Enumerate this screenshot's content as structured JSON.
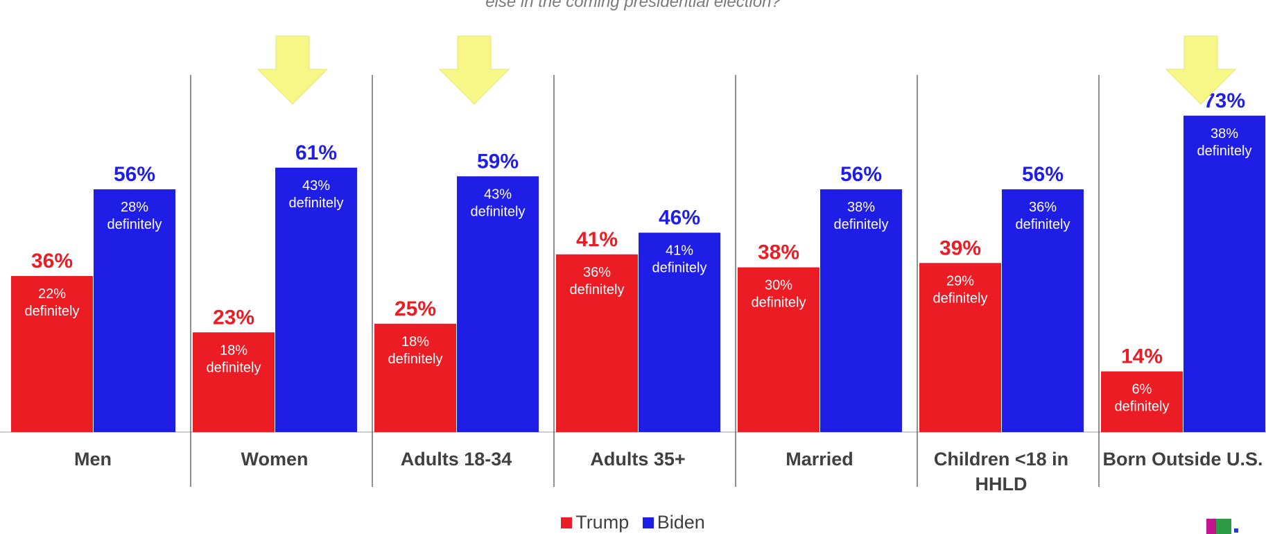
{
  "subtitle": "else in the coming presidential election?",
  "colors": {
    "trump": "#ec1c24",
    "biden": "#1e1ee6",
    "arrow": "#f7f788"
  },
  "chart_data": {
    "type": "bar",
    "categories": [
      "Men",
      "Women",
      "Adults 18-34",
      "Adults 35+",
      "Married",
      "Children <18 in HHLD",
      "Born Outside U.S."
    ],
    "series": [
      {
        "name": "Trump",
        "values": [
          36,
          23,
          25,
          41,
          38,
          39,
          14
        ],
        "value_labels": [
          "36%",
          "23%",
          "25%",
          "41%",
          "38%",
          "39%",
          "14%"
        ],
        "definitely_values": [
          22,
          18,
          18,
          36,
          30,
          29,
          6
        ],
        "definitely_labels": [
          "22%",
          "18%",
          "18%",
          "36%",
          "30%",
          "29%",
          "6%"
        ]
      },
      {
        "name": "Biden",
        "values": [
          56,
          61,
          59,
          46,
          56,
          56,
          73
        ],
        "value_labels": [
          "56%",
          "61%",
          "59%",
          "46%",
          "56%",
          "56%",
          "73%"
        ],
        "definitely_values": [
          28,
          43,
          43,
          41,
          38,
          36,
          38
        ],
        "definitely_labels": [
          "28%",
          "43%",
          "43%",
          "41%",
          "38%",
          "36%",
          "38%"
        ]
      }
    ],
    "definitely_word": "definitely",
    "highlighted_categories": [
      "Women",
      "Adults 18-34",
      "Born Outside U.S."
    ],
    "ylim": [
      0,
      80
    ],
    "grid": false,
    "legend_position": "bottom-center"
  },
  "legend": [
    {
      "label": "Trump",
      "color": "#ec1c24"
    },
    {
      "label": "Biden",
      "color": "#1e1ee6"
    }
  ],
  "logo": {
    "name": "univision-logo",
    "colors": [
      "#c1158c",
      "#2d9b46",
      "#1f3fbf"
    ]
  }
}
